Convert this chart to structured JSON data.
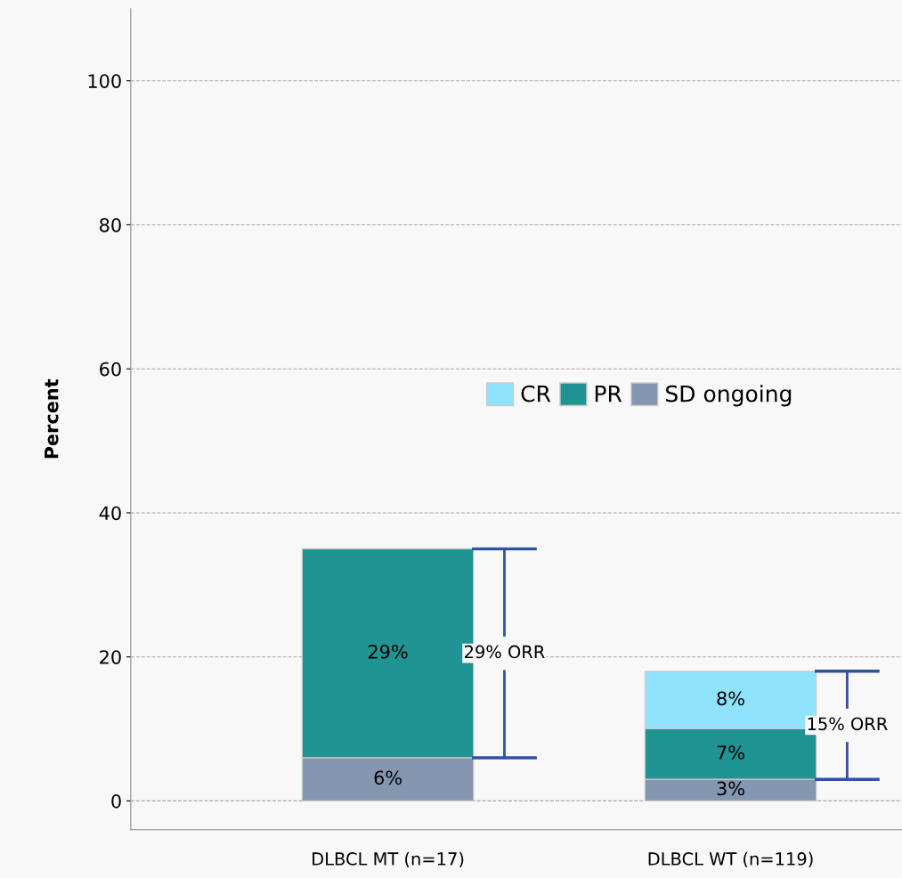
{
  "chart_data": {
    "type": "bar",
    "stacked": true,
    "ylabel": "Percent",
    "categories": [
      "DLBCL MT (n=17)",
      "DLBCL WT (n=119)"
    ],
    "series": [
      {
        "name": "SD ongoing",
        "color": "#8496b0",
        "values": [
          6,
          3
        ],
        "value_labels": [
          "6%",
          "3%"
        ]
      },
      {
        "name": "PR",
        "color": "#209393",
        "values": [
          29,
          7
        ],
        "value_labels": [
          "29%",
          "7%"
        ]
      },
      {
        "name": "CR",
        "color": "#8fe3fd",
        "values": [
          null,
          8
        ],
        "value_labels": [
          null,
          "8%"
        ]
      }
    ],
    "annotations": [
      "29% ORR",
      "15% ORR"
    ],
    "ylim": [
      -4,
      110
    ],
    "yticks": [
      0,
      20,
      40,
      60,
      80,
      100
    ],
    "grid": "y",
    "legend": "right"
  }
}
